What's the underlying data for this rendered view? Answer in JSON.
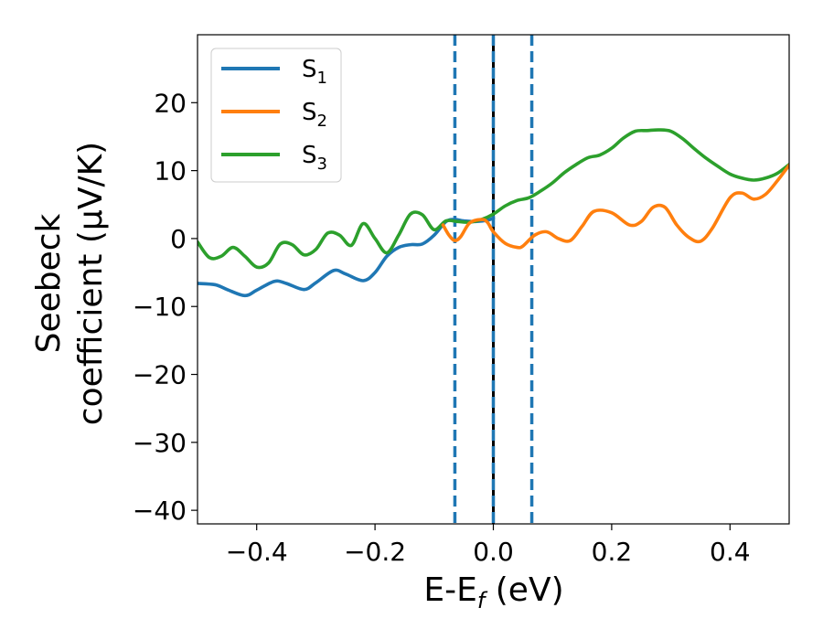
{
  "chart_data": {
    "type": "line",
    "xlabel": {
      "main": "E-E",
      "sub": "f",
      "unit": " (eV)"
    },
    "ylabel": {
      "line1": "Seebeck",
      "line2": "coefficient  (μV/K)"
    },
    "xlim": [
      -0.5,
      0.5
    ],
    "ylim": [
      -42,
      30
    ],
    "xticks": [
      -0.4,
      -0.2,
      0.0,
      0.2,
      0.4
    ],
    "xtick_labels": [
      "−0.4",
      "−0.2",
      "0.0",
      "0.2",
      "0.4"
    ],
    "yticks": [
      -40,
      -30,
      -20,
      -10,
      0,
      10,
      20
    ],
    "ytick_labels": [
      "−40",
      "−30",
      "−20",
      "−10",
      "0",
      "10",
      "20"
    ],
    "grid": false,
    "legend_position": "top-left",
    "series": [
      {
        "name": "S",
        "sub": "1",
        "color": "#1f77b4",
        "x": [
          -0.5,
          -0.47,
          -0.45,
          -0.42,
          -0.4,
          -0.37,
          -0.35,
          -0.32,
          -0.3,
          -0.27,
          -0.25,
          -0.22,
          -0.2,
          -0.18,
          -0.16,
          -0.14,
          -0.12,
          -0.1,
          -0.08,
          -0.065,
          -0.05,
          -0.03,
          -0.01,
          0.0
        ],
        "y": [
          -6.6,
          -6.8,
          -7.5,
          -8.4,
          -7.6,
          -6.3,
          -6.6,
          -7.5,
          -6.5,
          -4.7,
          -5.2,
          -6.2,
          -5.0,
          -2.6,
          -1.3,
          -0.9,
          -0.8,
          0.5,
          2.5,
          2.8,
          2.6,
          2.5,
          2.7,
          3.0
        ]
      },
      {
        "name": "S",
        "sub": "2",
        "color": "#ff7f0e",
        "x": [
          -0.085,
          -0.075,
          -0.065,
          -0.055,
          -0.04,
          -0.02,
          -0.01,
          0.0,
          0.02,
          0.04,
          0.05,
          0.07,
          0.09,
          0.11,
          0.13,
          0.15,
          0.17,
          0.2,
          0.23,
          0.25,
          0.27,
          0.29,
          0.31,
          0.33,
          0.35,
          0.37,
          0.4,
          0.42,
          0.44,
          0.46,
          0.48,
          0.5
        ],
        "y": [
          2.0,
          0.5,
          -0.3,
          0.3,
          2.3,
          2.8,
          2.4,
          1.0,
          -0.7,
          -1.3,
          -1.1,
          0.5,
          1.0,
          0.0,
          -0.3,
          1.8,
          4.0,
          3.8,
          2.0,
          2.5,
          4.6,
          4.6,
          2.0,
          0.2,
          -0.4,
          1.5,
          6.0,
          6.7,
          5.8,
          6.5,
          8.5,
          10.8
        ]
      },
      {
        "name": "S",
        "sub": "3",
        "color": "#2ca02c",
        "x": [
          -0.5,
          -0.48,
          -0.46,
          -0.44,
          -0.42,
          -0.4,
          -0.38,
          -0.36,
          -0.34,
          -0.32,
          -0.3,
          -0.28,
          -0.26,
          -0.24,
          -0.22,
          -0.2,
          -0.18,
          -0.16,
          -0.14,
          -0.12,
          -0.1,
          -0.08,
          -0.06,
          -0.04,
          -0.02,
          0.0,
          0.02,
          0.04,
          0.06,
          0.08,
          0.1,
          0.12,
          0.14,
          0.16,
          0.18,
          0.2,
          0.22,
          0.24,
          0.26,
          0.28,
          0.3,
          0.32,
          0.34,
          0.36,
          0.38,
          0.4,
          0.42,
          0.44,
          0.46,
          0.48,
          0.5
        ],
        "y": [
          -0.5,
          -2.8,
          -2.6,
          -1.3,
          -2.6,
          -4.2,
          -3.6,
          -0.8,
          -0.9,
          -2.4,
          -1.6,
          0.8,
          0.5,
          -1.0,
          2.2,
          0.0,
          -2.1,
          0.5,
          3.6,
          3.5,
          1.3,
          2.6,
          2.5,
          2.4,
          2.8,
          3.6,
          4.8,
          5.6,
          6.0,
          7.0,
          8.2,
          9.7,
          10.9,
          11.9,
          12.3,
          13.3,
          14.8,
          15.8,
          15.9,
          16.0,
          15.8,
          14.7,
          13.2,
          11.8,
          10.6,
          9.5,
          8.9,
          8.6,
          8.9,
          9.6,
          10.9
        ]
      }
    ],
    "vlines": [
      {
        "x": -0.065,
        "color": "#1f77b4",
        "style": "dashed"
      },
      {
        "x": 0.0,
        "color": "#000000",
        "style": "solid"
      },
      {
        "x": 0.0,
        "color": "#1f77b4",
        "style": "dashed"
      },
      {
        "x": 0.065,
        "color": "#1f77b4",
        "style": "dashed"
      }
    ]
  }
}
